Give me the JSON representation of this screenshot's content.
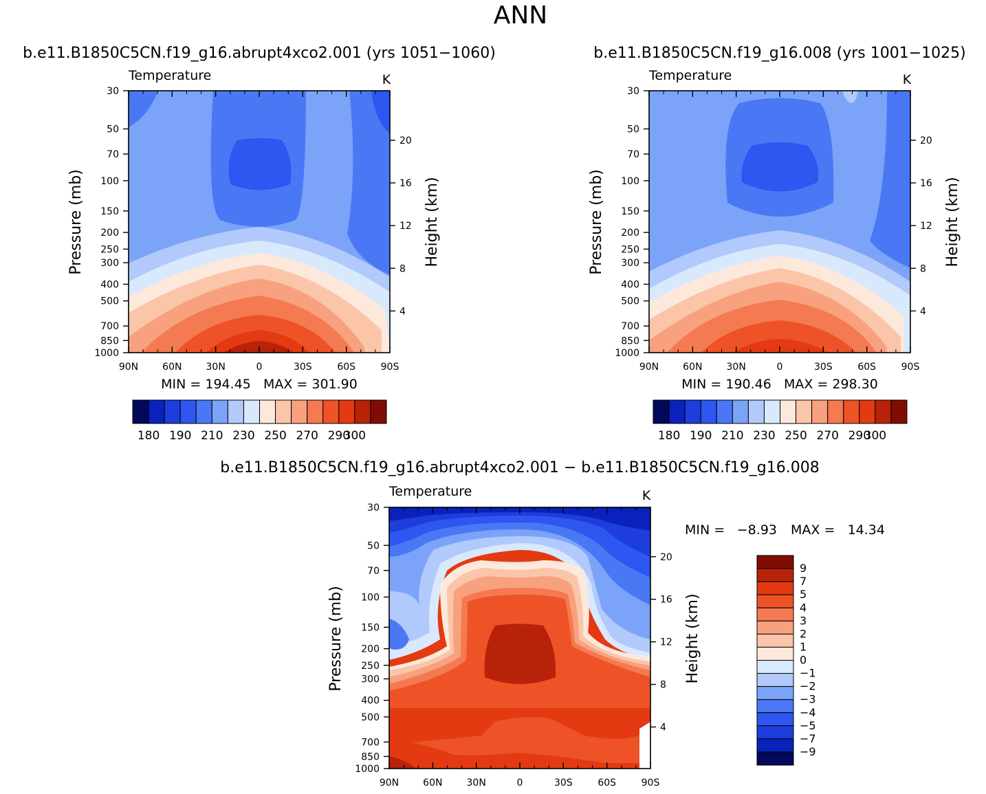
{
  "page": {
    "title": "ANN"
  },
  "colors": {
    "abs": [
      "#02085a",
      "#0a22bb",
      "#1d3ddc",
      "#2e56f0",
      "#4a78f5",
      "#7ba4f9",
      "#b1cafb",
      "#d9e9fd",
      "#fde8dc",
      "#fbc5aa",
      "#f8a17e",
      "#f47a52",
      "#ee5327",
      "#e33a12",
      "#b82208",
      "#7f0d04"
    ],
    "diff": [
      "#02085a",
      "#0a22bb",
      "#1d3ddc",
      "#2e56f0",
      "#4a78f5",
      "#7ba4f9",
      "#b1cafb",
      "#d9e9fd",
      "#fde8dc",
      "#fbc5aa",
      "#f8a17e",
      "#f47a52",
      "#ee5327",
      "#e33a12",
      "#b82208",
      "#7f0d04"
    ]
  },
  "chart_data": [
    {
      "type": "heatmap",
      "title": "b.e11.B1850C5CN.f19_g16.abrupt4xco2.001 (yrs 1051−1060)",
      "subtitle": "Temperature",
      "units": "K",
      "ylabel": "Pressure (mb)",
      "y2label": "Height (km)",
      "x_ticks": [
        "90N",
        "60N",
        "30N",
        "0",
        "30S",
        "60S",
        "90S"
      ],
      "y_ticks": [
        "30",
        "50",
        "70",
        "100",
        "150",
        "200",
        "250",
        "300",
        "400",
        "500",
        "700",
        "850",
        "1000"
      ],
      "y2_ticks": [
        "20",
        "16",
        "12",
        "8",
        "4"
      ],
      "stats": "MIN = 194.45   MAX = 301.90",
      "levels": [
        180,
        190,
        200,
        210,
        220,
        230,
        240,
        250,
        260,
        270,
        280,
        290,
        295,
        300,
        305
      ],
      "colorbar_labels": [
        "180",
        "190",
        "210",
        "230",
        "250",
        "270",
        "290",
        "300"
      ],
      "ylim": [
        1000,
        30
      ],
      "xlim": [
        90,
        -90
      ]
    },
    {
      "type": "heatmap",
      "title": "b.e11.B1850C5CN.f19_g16.008 (yrs 1001−1025)",
      "subtitle": "Temperature",
      "units": "K",
      "ylabel": "Pressure (mb)",
      "y2label": "Height (km)",
      "x_ticks": [
        "90N",
        "60N",
        "30N",
        "0",
        "30S",
        "60S",
        "90S"
      ],
      "y_ticks": [
        "30",
        "50",
        "70",
        "100",
        "150",
        "200",
        "250",
        "300",
        "400",
        "500",
        "700",
        "850",
        "1000"
      ],
      "y2_ticks": [
        "20",
        "16",
        "12",
        "8",
        "4"
      ],
      "stats": "MIN = 190.46   MAX = 298.30",
      "levels": [
        180,
        190,
        200,
        210,
        220,
        230,
        240,
        250,
        260,
        270,
        280,
        290,
        295,
        300,
        305
      ],
      "colorbar_labels": [
        "180",
        "190",
        "210",
        "230",
        "250",
        "270",
        "290",
        "300"
      ],
      "ylim": [
        1000,
        30
      ],
      "xlim": [
        90,
        -90
      ]
    },
    {
      "type": "heatmap",
      "title": "b.e11.B1850C5CN.f19_g16.abrupt4xco2.001 − b.e11.B1850C5CN.f19_g16.008",
      "subtitle": "Temperature",
      "units": "K",
      "ylabel": "Pressure (mb)",
      "y2label": "Height (km)",
      "x_ticks": [
        "90N",
        "60N",
        "30N",
        "0",
        "30S",
        "60S",
        "90S"
      ],
      "y_ticks": [
        "30",
        "50",
        "70",
        "100",
        "150",
        "200",
        "250",
        "300",
        "400",
        "500",
        "700",
        "850",
        "1000"
      ],
      "y2_ticks": [
        "20",
        "16",
        "12",
        "8",
        "4"
      ],
      "stats_min": "MIN =",
      "stats_min_val": "−8.93",
      "stats_max": "MAX =",
      "stats_max_val": "14.34",
      "levels": [
        -9,
        -7,
        -5,
        -4,
        -3,
        -2,
        -1,
        0,
        1,
        2,
        3,
        4,
        5,
        7,
        9
      ],
      "colorbar_labels": [
        "9",
        "7",
        "5",
        "4",
        "3",
        "2",
        "1",
        "0",
        "−1",
        "−2",
        "−3",
        "−4",
        "−5",
        "−7",
        "−9"
      ],
      "ylim": [
        1000,
        30
      ],
      "xlim": [
        90,
        -90
      ]
    }
  ]
}
